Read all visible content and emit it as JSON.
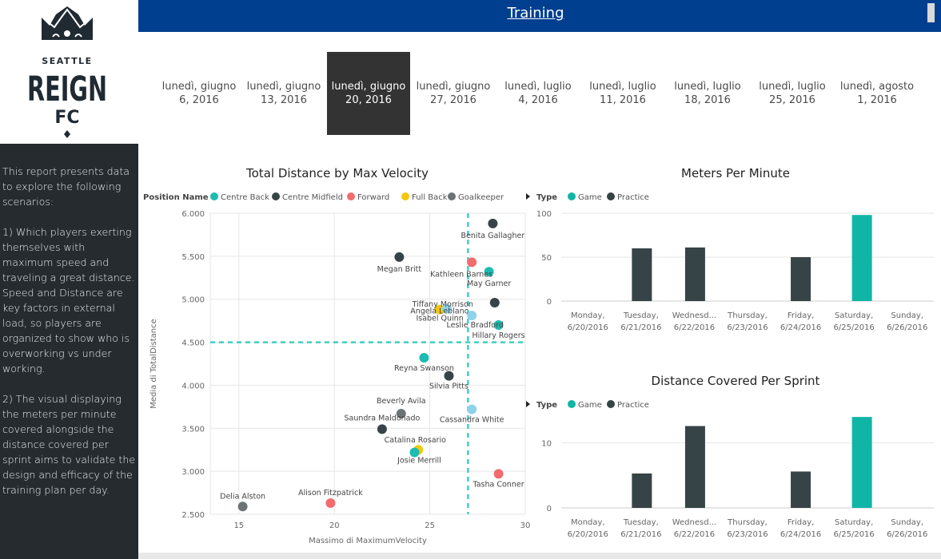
{
  "brand": {
    "line1": "SEATTLE",
    "line2": "REIGN",
    "line3": "FC"
  },
  "header": {
    "title": "Training"
  },
  "sidebar": {
    "description": "This report presents data to explore the following scenarios:\n\n1) Which players exerting themselves with maximum speed and traveling a great distance. Speed and Distance are key factors in external load, so players are organized to show who is overworking vs under working.\n\n2) The visual displaying the meters per minute covered alongside the distance covered per sprint aims to validate the design and efficacy of the training plan per day."
  },
  "date_slicer": [
    {
      "line1": "lunedì, giugno",
      "line2": "6, 2016",
      "selected": false
    },
    {
      "line1": "lunedì, giugno",
      "line2": "13, 2016",
      "selected": false
    },
    {
      "line1": "lunedì, giugno",
      "line2": "20, 2016",
      "selected": true
    },
    {
      "line1": "lunedì, giugno",
      "line2": "27, 2016",
      "selected": false
    },
    {
      "line1": "lunedì, luglio",
      "line2": "4, 2016",
      "selected": false
    },
    {
      "line1": "lunedì, luglio",
      "line2": "11, 2016",
      "selected": false
    },
    {
      "line1": "lunedì, luglio",
      "line2": "18, 2016",
      "selected": false
    },
    {
      "line1": "lunedì, luglio",
      "line2": "25, 2016",
      "selected": false
    },
    {
      "line1": "lunedì, agosto",
      "line2": "1, 2016",
      "selected": false
    }
  ],
  "colors": {
    "Centre Back": "#1cbcb0",
    "Centre Midfield": "#374447",
    "Forward": "#f26b6f",
    "Full Back": "#f2c80f",
    "Goalkeeper": "#6b7376",
    "Light": "#8fd3ea",
    "Game": "#11b5a6",
    "Practice": "#374447"
  },
  "chart_data": [
    {
      "type": "scatter",
      "title": "Total Distance by Max Velocity",
      "legend_title": "Position Name",
      "legend": [
        "Centre Back",
        "Centre Midfield",
        "Forward",
        "Full Back",
        "Goalkeeper"
      ],
      "xlabel": "Massimo di MaximumVelocity",
      "ylabel": "Media di TotalDistance",
      "xlim": [
        13.5,
        30
      ],
      "ylim": [
        2500,
        6000
      ],
      "xticks": [
        15,
        20,
        25,
        30
      ],
      "yticks": [
        2500,
        3000,
        3500,
        4000,
        4500,
        5000,
        5500,
        6000
      ],
      "ytick_labels": [
        "2.500",
        "3.000",
        "3.500",
        "4.000",
        "4.500",
        "5.000",
        "5.500",
        "6.000"
      ],
      "ref_x": 27.0,
      "ref_y": 4500,
      "points": [
        {
          "name": "Benita Gallagher",
          "x": 28.3,
          "y": 5880,
          "group": "Centre Midfield"
        },
        {
          "name": "Megan Britt",
          "x": 23.4,
          "y": 5490,
          "group": "Centre Midfield"
        },
        {
          "name": "Kathleen Barnes",
          "x": 27.2,
          "y": 5430,
          "group": "Forward"
        },
        {
          "name": "May Garner",
          "x": 28.1,
          "y": 5320,
          "group": "Centre Back"
        },
        {
          "name": "Tiffany Morrison",
          "x": 28.4,
          "y": 4960,
          "group": "Centre Midfield"
        },
        {
          "name": "Angela Leblanc",
          "x": 25.5,
          "y": 4880,
          "group": "Full Back"
        },
        {
          "name": "Leslie Bradford",
          "x": 27.2,
          "y": 4810,
          "group": "Light"
        },
        {
          "name": "Isabel Quinn",
          "x": 25.9,
          "y": 4890,
          "group": "Light"
        },
        {
          "name": "Hillary Rogers",
          "x": 28.6,
          "y": 4700,
          "group": "Centre Back"
        },
        {
          "name": "Reyna Swanson",
          "x": 24.7,
          "y": 4320,
          "group": "Centre Back"
        },
        {
          "name": "Silvia Pitts",
          "x": 26.0,
          "y": 4110,
          "group": "Centre Midfield"
        },
        {
          "name": "Beverly Avila",
          "x": 23.5,
          "y": 3670,
          "group": "Goalkeeper"
        },
        {
          "name": "Cassandra White",
          "x": 27.2,
          "y": 3720,
          "group": "Light"
        },
        {
          "name": "Saundra Maldonado",
          "x": 22.5,
          "y": 3490,
          "group": "Centre Midfield"
        },
        {
          "name": "Catalina Rosario",
          "x": 24.4,
          "y": 3250,
          "group": "Full Back"
        },
        {
          "name": "Josie Merrill",
          "x": 24.2,
          "y": 3220,
          "group": "Centre Back"
        },
        {
          "name": "Tasha Conner",
          "x": 28.6,
          "y": 2970,
          "group": "Forward"
        },
        {
          "name": "Delia Alston",
          "x": 15.2,
          "y": 2590,
          "group": "Goalkeeper"
        },
        {
          "name": "Alison Fitzpatrick",
          "x": 19.8,
          "y": 2630,
          "group": "Forward"
        }
      ]
    },
    {
      "type": "bar",
      "title": "Meters Per Minute",
      "legend_title": "Type",
      "legend": [
        "Game",
        "Practice"
      ],
      "categories": [
        [
          "Monday,",
          "6/20/2016"
        ],
        [
          "Tuesday,",
          "6/21/2016"
        ],
        [
          "Wednesd...",
          "6/22/2016"
        ],
        [
          "Thursday,",
          "6/23/2016"
        ],
        [
          "Friday,",
          "6/24/2016"
        ],
        [
          "Saturday,",
          "6/25/2016"
        ],
        [
          "Sunday,",
          "6/26/2016"
        ]
      ],
      "values": [
        null,
        60,
        61,
        null,
        50,
        98,
        null
      ],
      "types": [
        null,
        "Practice",
        "Practice",
        null,
        "Practice",
        "Game",
        null
      ],
      "ylim": [
        0,
        100
      ],
      "yticks": [
        0,
        50,
        100
      ]
    },
    {
      "type": "bar",
      "title": "Distance Covered Per Sprint",
      "legend_title": "Type",
      "legend": [
        "Game",
        "Practice"
      ],
      "categories": [
        [
          "Monday,",
          "6/20/2016"
        ],
        [
          "Tuesday,",
          "6/21/2016"
        ],
        [
          "Wednesd...",
          "6/22/2016"
        ],
        [
          "Thursday,",
          "6/23/2016"
        ],
        [
          "Friday,",
          "6/24/2016"
        ],
        [
          "Saturday,",
          "6/25/2016"
        ],
        [
          "Sunday,",
          "6/26/2016"
        ]
      ],
      "values": [
        null,
        5.3,
        12.6,
        null,
        5.6,
        14.0,
        null
      ],
      "types": [
        null,
        "Practice",
        "Practice",
        null,
        "Practice",
        "Game",
        null
      ],
      "ylim": [
        0,
        15
      ],
      "yticks": [
        0,
        10
      ]
    }
  ]
}
